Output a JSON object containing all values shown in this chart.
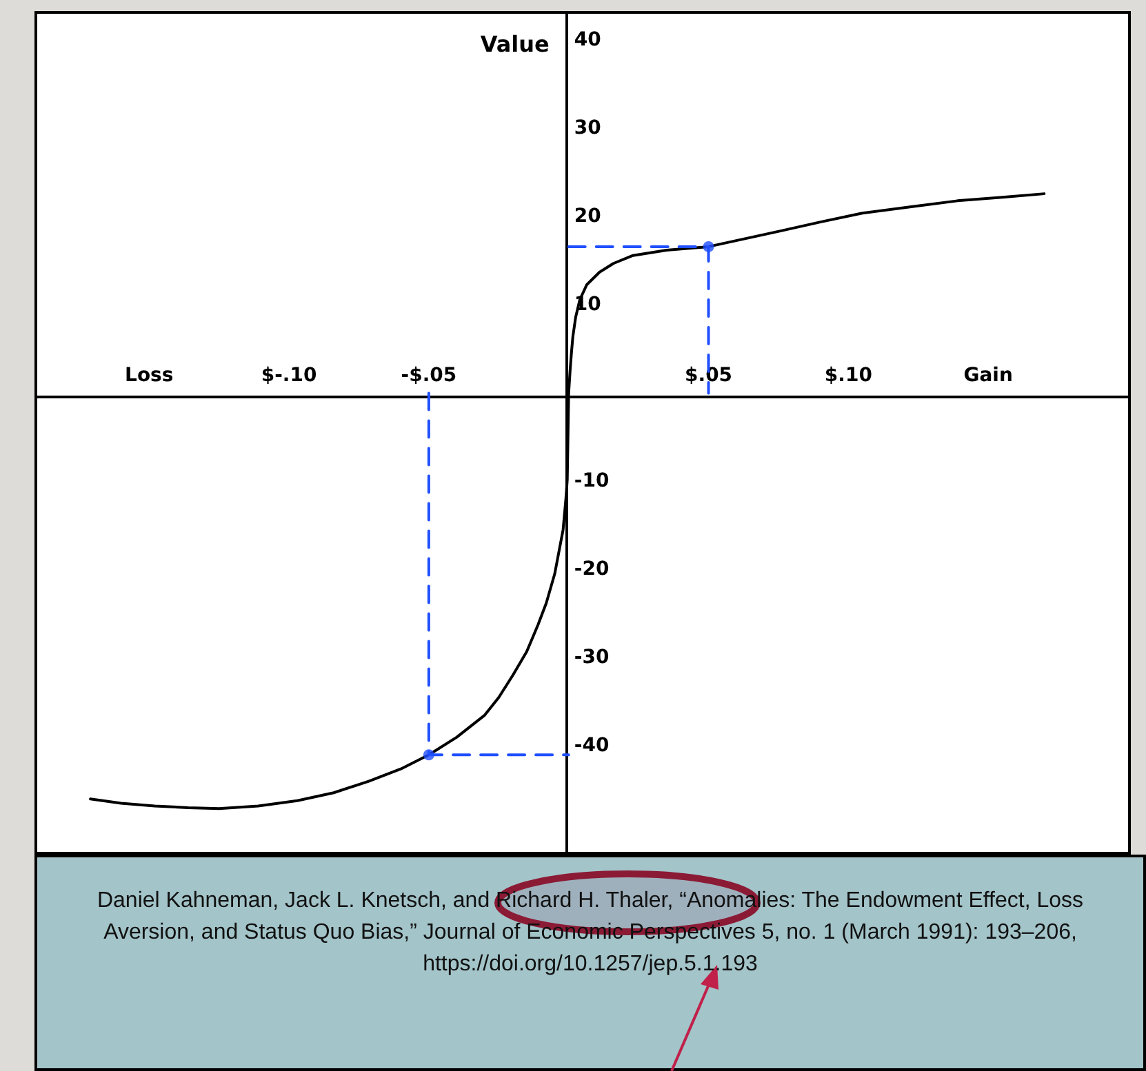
{
  "chart_data": {
    "type": "line",
    "ylabel": "Value",
    "xlim": [
      -0.19,
      0.2
    ],
    "ylim": [
      -52,
      43
    ],
    "xticks": [
      {
        "value": -0.15,
        "label": "Loss"
      },
      {
        "value": -0.1,
        "label": "$-.10"
      },
      {
        "value": -0.05,
        "label": "-$.05"
      },
      {
        "value": 0.05,
        "label": "$.05"
      },
      {
        "value": 0.1,
        "label": "$.10"
      },
      {
        "value": 0.15,
        "label": "Gain"
      }
    ],
    "yticks": [
      -40,
      -30,
      -20,
      -10,
      10,
      20,
      30,
      40
    ],
    "series": [
      {
        "color": "#000000",
        "marker": "none",
        "line_style": "solid",
        "x": [
          -0.171,
          -0.16,
          -0.148,
          -0.136,
          -0.125,
          -0.111,
          -0.097,
          -0.084,
          -0.0715,
          -0.06,
          -0.05,
          -0.04,
          -0.03,
          -0.025,
          -0.02,
          -0.015,
          -0.011,
          -0.008,
          -0.005,
          -0.0035,
          -0.002,
          -0.001,
          -0.0005,
          0,
          0.0005,
          0.001,
          0.0015,
          0.0025,
          0.004,
          0.0065,
          0.011,
          0.016,
          0.023,
          0.035,
          0.05,
          0.063,
          0.076,
          0.09,
          0.105,
          0.122,
          0.139,
          0.155,
          0.17
        ],
        "values": [
          -46.0,
          -46.5,
          -46.8,
          -47.0,
          -47.1,
          -46.8,
          -46.2,
          -45.3,
          -44.0,
          -42.6,
          -41.0,
          -39.0,
          -36.5,
          -34.5,
          -32.0,
          -29.3,
          -26.3,
          -23.8,
          -20.5,
          -18.0,
          -15.5,
          -12.0,
          -9.8,
          0,
          2.5,
          4.6,
          6.4,
          8.6,
          10.6,
          12.3,
          13.7,
          14.7,
          15.6,
          16.2,
          16.6,
          17.5,
          18.4,
          19.4,
          20.4,
          21.1,
          21.8,
          22.2,
          22.6
        ]
      },
      {
        "color": "#1f4fff",
        "marker": "none",
        "line_style": "dashed",
        "x": [
          0,
          0.05,
          0.05
        ],
        "values": [
          16.6,
          16.6,
          0
        ]
      },
      {
        "color": "#1f4fff",
        "marker": "none",
        "line_style": "dashed",
        "x": [
          -0.05,
          -0.05,
          0
        ],
        "values": [
          0,
          -41.0,
          -41.0
        ]
      },
      {
        "type": "scatter",
        "color": "#1f4fff",
        "marker": "circle",
        "x": [
          0.05,
          -0.05
        ],
        "values": [
          16.6,
          -41.0
        ]
      }
    ],
    "annotations": [
      "Daniel Kahneman, Jack L. Knetsch, and Richard H. Thaler, “Anomalies: The Endowment Effect, Loss Aversion, and Status Quo Bias,” Journal of Economic Perspectives 5, no. 1 (March 1991): 193–206, https://doi.org/10.1257/jep.5.1.193"
    ]
  }
}
